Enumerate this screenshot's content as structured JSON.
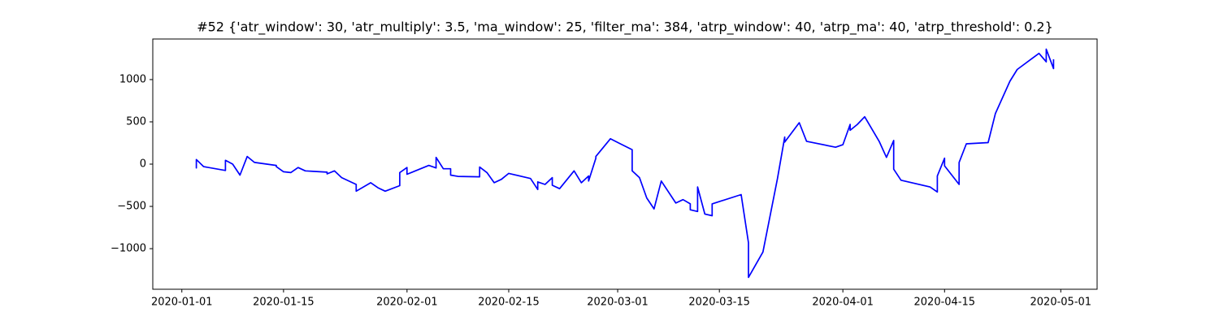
{
  "chart_data": {
    "type": "line",
    "title": "#52 {'atr_window': 30, 'atr_multiply': 3.5, 'ma_window': 25, 'filter_ma': 384, 'atrp_window': 40, 'atrp_ma': 40, 'atrp_threshold': 0.2}",
    "x": [
      "2020-01-03",
      "2020-01-03",
      "2020-01-03",
      "2020-01-04",
      "2020-01-07",
      "2020-01-07",
      "2020-01-08",
      "2020-01-09",
      "2020-01-10",
      "2020-01-11",
      "2020-01-14",
      "2020-01-14",
      "2020-01-15",
      "2020-01-16",
      "2020-01-17",
      "2020-01-18",
      "2020-01-21",
      "2020-01-21",
      "2020-01-22",
      "2020-01-23",
      "2020-01-25",
      "2020-01-25",
      "2020-01-25",
      "2020-01-27",
      "2020-01-28",
      "2020-01-29",
      "2020-01-31",
      "2020-01-31",
      "2020-02-01",
      "2020-02-01",
      "2020-02-04",
      "2020-02-05",
      "2020-02-05",
      "2020-02-06",
      "2020-02-07",
      "2020-02-07",
      "2020-02-08",
      "2020-02-11",
      "2020-02-11",
      "2020-02-12",
      "2020-02-13",
      "2020-02-14",
      "2020-02-15",
      "2020-02-18",
      "2020-02-19",
      "2020-02-19",
      "2020-02-20",
      "2020-02-21",
      "2020-02-21",
      "2020-02-22",
      "2020-02-24",
      "2020-02-25",
      "2020-02-26",
      "2020-02-26",
      "2020-02-27",
      "2020-02-27",
      "2020-02-29",
      "2020-03-03",
      "2020-03-03",
      "2020-03-04",
      "2020-03-05",
      "2020-03-06",
      "2020-03-07",
      "2020-03-09",
      "2020-03-10",
      "2020-03-11",
      "2020-03-11",
      "2020-03-12",
      "2020-03-12",
      "2020-03-13",
      "2020-03-14",
      "2020-03-14",
      "2020-03-18",
      "2020-03-19",
      "2020-03-19",
      "2020-03-21",
      "2020-03-23",
      "2020-03-24",
      "2020-03-24",
      "2020-03-26",
      "2020-03-27",
      "2020-03-31",
      "2020-04-01",
      "2020-04-02",
      "2020-04-02",
      "2020-04-03",
      "2020-04-04",
      "2020-04-06",
      "2020-04-07",
      "2020-04-08",
      "2020-04-08",
      "2020-04-09",
      "2020-04-13",
      "2020-04-14",
      "2020-04-14",
      "2020-04-15",
      "2020-04-15",
      "2020-04-16",
      "2020-04-17",
      "2020-04-17",
      "2020-04-18",
      "2020-04-21",
      "2020-04-22",
      "2020-04-24",
      "2020-04-25",
      "2020-04-28",
      "2020-04-29",
      "2020-04-29",
      "2020-04-30",
      "2020-04-30"
    ],
    "series": [
      {
        "color": "#0000ff",
        "values": [
          0,
          -45,
          55,
          -30,
          -75,
          45,
          0,
          -130,
          90,
          20,
          -15,
          -30,
          -90,
          -100,
          -40,
          -80,
          -95,
          -115,
          -80,
          -160,
          -240,
          -250,
          -320,
          -220,
          -280,
          -320,
          -255,
          -100,
          -40,
          -120,
          -15,
          -45,
          80,
          -55,
          -55,
          -130,
          -145,
          -150,
          -35,
          -100,
          -220,
          -180,
          -110,
          -170,
          -300,
          -210,
          -240,
          -160,
          -250,
          -290,
          -80,
          -220,
          -140,
          -200,
          70,
          90,
          300,
          170,
          -80,
          -160,
          -400,
          -530,
          -200,
          -460,
          -420,
          -470,
          -540,
          -560,
          -270,
          -590,
          -610,
          -470,
          -360,
          -930,
          -1340,
          -1040,
          -170,
          320,
          260,
          490,
          270,
          200,
          230,
          470,
          400,
          470,
          560,
          270,
          80,
          280,
          -60,
          -190,
          -270,
          -330,
          -140,
          70,
          -20,
          -130,
          -240,
          20,
          240,
          255,
          600,
          980,
          1120,
          1310,
          1210,
          1360,
          1130,
          1240
        ]
      }
    ],
    "xlim": [
      "2019-12-28",
      "2020-05-06"
    ],
    "xticks": [
      "2020-01-01",
      "2020-01-15",
      "2020-02-01",
      "2020-02-15",
      "2020-03-01",
      "2020-03-15",
      "2020-04-01",
      "2020-04-15",
      "2020-05-01"
    ],
    "ylim": [
      -1480,
      1480
    ],
    "yticks": [
      {
        "value": -1000,
        "label": "−1000"
      },
      {
        "value": -500,
        "label": "−500"
      },
      0,
      500,
      1000
    ]
  }
}
